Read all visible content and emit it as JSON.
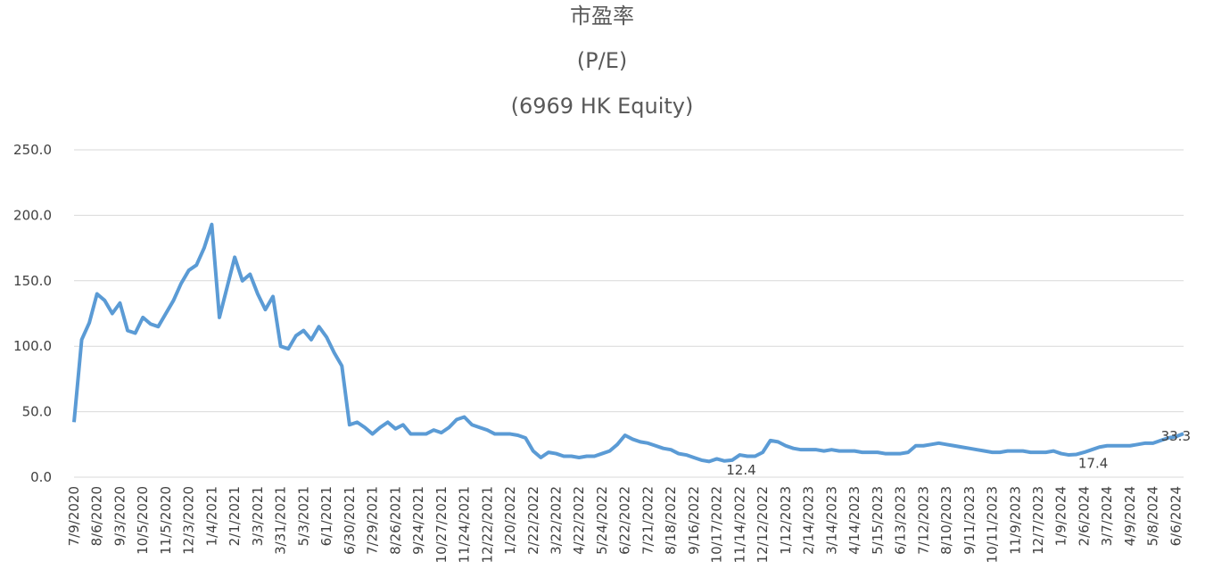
{
  "chart_data": {
    "type": "line",
    "title": "市盈率",
    "subtitle": "(P/E)",
    "subtitle2": "(6969 HK Equity)",
    "categories": [
      "7/9/2020",
      null,
      null,
      "8/6/2020",
      null,
      null,
      "9/3/2020",
      null,
      null,
      "10/5/2020",
      null,
      null,
      "11/5/2020",
      null,
      null,
      "12/3/2020",
      null,
      null,
      "1/4/2021",
      null,
      null,
      "2/1/2021",
      null,
      null,
      "3/3/2021",
      null,
      null,
      "3/31/2021",
      null,
      null,
      "5/3/2021",
      null,
      null,
      "6/1/2021",
      null,
      null,
      "6/30/2021",
      null,
      null,
      "7/29/2021",
      null,
      null,
      "8/26/2021",
      null,
      null,
      "9/24/2021",
      null,
      null,
      "10/27/2021",
      null,
      null,
      "11/24/2021",
      null,
      null,
      "12/22/2021",
      null,
      null,
      "1/20/2022",
      null,
      null,
      "2/22/2022",
      null,
      null,
      "3/22/2022",
      null,
      null,
      "4/22/2022",
      null,
      null,
      "5/24/2022",
      null,
      null,
      "6/22/2022",
      null,
      null,
      "7/21/2022",
      null,
      null,
      "8/18/2022",
      null,
      null,
      "9/16/2022",
      null,
      null,
      "10/17/2022",
      null,
      null,
      "11/14/2022",
      null,
      null,
      "12/12/2022",
      null,
      null,
      "1/12/2023",
      null,
      null,
      "2/14/2023",
      null,
      null,
      "3/14/2023",
      null,
      null,
      "4/14/2023",
      null,
      null,
      "5/15/2023",
      null,
      null,
      "6/13/2023",
      null,
      null,
      "7/12/2023",
      null,
      null,
      "8/10/2023",
      null,
      null,
      "9/11/2023",
      null,
      null,
      "10/11/2023",
      null,
      null,
      "11/9/2023",
      null,
      null,
      "12/7/2023",
      null,
      null,
      "1/9/2024",
      null,
      null,
      "2/6/2024",
      null,
      null,
      "3/7/2024",
      null,
      null,
      "4/9/2024",
      null,
      null,
      "5/8/2024",
      null,
      null,
      "6/6/2024",
      null
    ],
    "series": [
      {
        "name": "P/E",
        "color": "#5b9bd5",
        "values": [
          42,
          105,
          118,
          140,
          135,
          125,
          133,
          112,
          110,
          122,
          117,
          115,
          125,
          135,
          148,
          158,
          162,
          175,
          193,
          122,
          145,
          168,
          150,
          155,
          140,
          128,
          138,
          100,
          98,
          108,
          112,
          105,
          115,
          107,
          95,
          85,
          40,
          42,
          38,
          33,
          38,
          42,
          37,
          40,
          33,
          33,
          33,
          36,
          34,
          38,
          44,
          46,
          40,
          38,
          36,
          33,
          33,
          33,
          32,
          30,
          20,
          15,
          19,
          18,
          16,
          16,
          15,
          16,
          16,
          18,
          20,
          25,
          32,
          29,
          27,
          26,
          24,
          22,
          21,
          18,
          17,
          15,
          13,
          12,
          14,
          12.4,
          13,
          17,
          16,
          16,
          19,
          28,
          27,
          24,
          22,
          21,
          21,
          21,
          20,
          21,
          20,
          20,
          20,
          19,
          19,
          19,
          18,
          18,
          18,
          19,
          24,
          24,
          25,
          26,
          25,
          24,
          23,
          22,
          21,
          20,
          19,
          19,
          20,
          20,
          20,
          19,
          19,
          19,
          20,
          18,
          17,
          17.4,
          19,
          21,
          23,
          24,
          24,
          24,
          24,
          25,
          26,
          26,
          28,
          30,
          31,
          33.3
        ],
        "value_labels": [
          null,
          null,
          null,
          null,
          null,
          null,
          null,
          null,
          null,
          null,
          null,
          null,
          null,
          null,
          null,
          null,
          null,
          null,
          null,
          null,
          null,
          null,
          null,
          null,
          null,
          null,
          null,
          null,
          null,
          null,
          null,
          null,
          null,
          null,
          null,
          null,
          null,
          null,
          null,
          null,
          null,
          null,
          null,
          null,
          null,
          null,
          null,
          null,
          null,
          null,
          null,
          null,
          null,
          null,
          null,
          null,
          null,
          null,
          null,
          null,
          null,
          null,
          null,
          null,
          null,
          null,
          null,
          null,
          null,
          null,
          null,
          null,
          null,
          null,
          null,
          null,
          null,
          null,
          null,
          null,
          null,
          null,
          null,
          null,
          null,
          "12.4",
          null,
          null,
          null,
          null,
          null,
          null,
          null,
          null,
          null,
          null,
          null,
          null,
          null,
          null,
          null,
          null,
          null,
          null,
          null,
          null,
          null,
          null,
          null,
          null,
          null,
          null,
          null,
          null,
          null,
          null,
          null,
          null,
          null,
          null,
          null,
          null,
          null,
          null,
          null,
          null,
          null,
          null,
          null,
          null,
          null,
          "17.4",
          null,
          null,
          null,
          null,
          null,
          null,
          null,
          null,
          null,
          null,
          null,
          null,
          null,
          "33.3"
        ]
      }
    ],
    "ylim": [
      0,
      250
    ],
    "yticks": [
      {
        "value": 0,
        "label": "0.0"
      },
      {
        "value": 50,
        "label": "50.0"
      },
      {
        "value": 100,
        "label": "100.0"
      },
      {
        "value": 150,
        "label": "150.0"
      },
      {
        "value": 200,
        "label": "200.0"
      },
      {
        "value": 250,
        "label": "250.0"
      }
    ],
    "grid": true
  }
}
